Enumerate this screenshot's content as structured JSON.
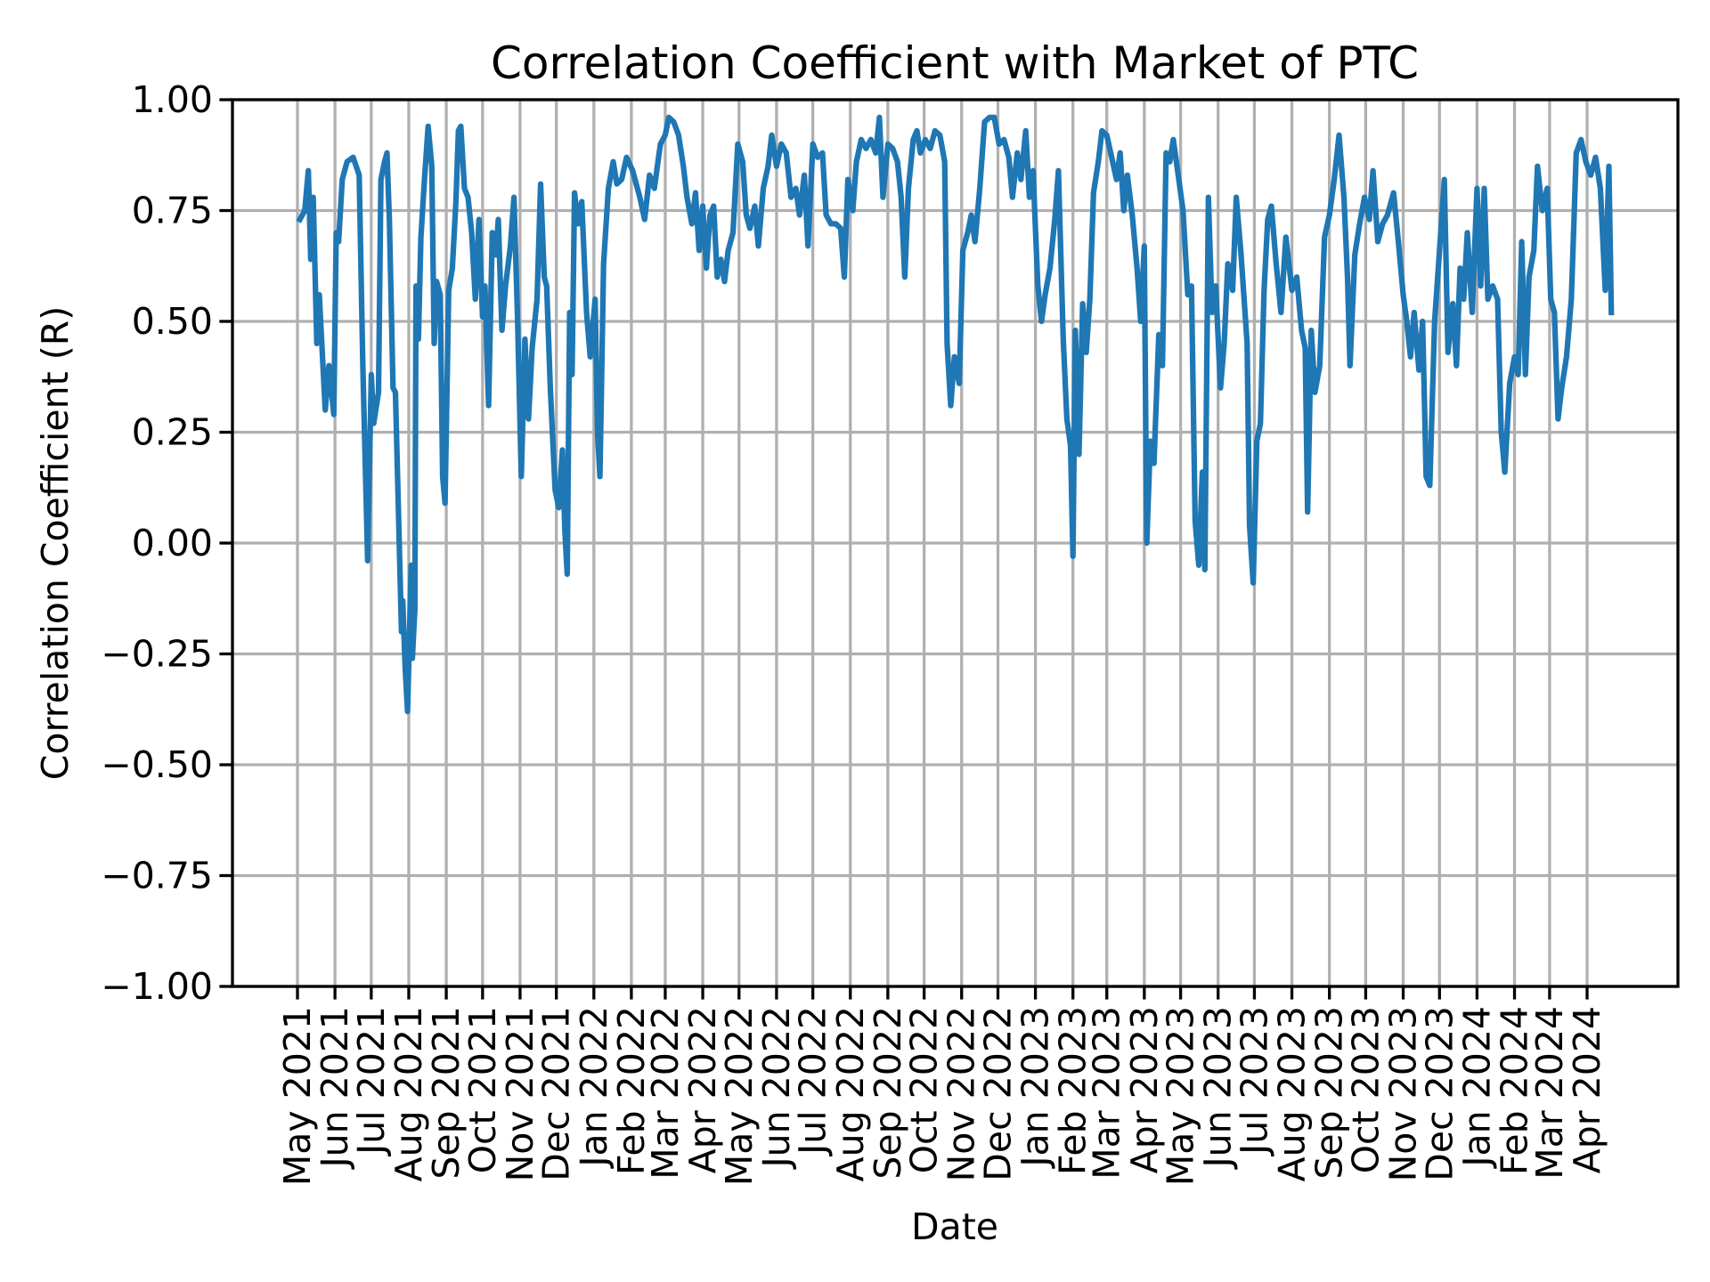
{
  "chart_data": {
    "type": "line",
    "title": "Correlation Coefficient with Market of PTC",
    "xlabel": "Date",
    "ylabel": "Correlation Coefficient (R)",
    "ylim": [
      -1.0,
      1.0
    ],
    "yticks": [
      "1.00",
      "0.75",
      "0.50",
      "0.25",
      "0.00",
      "−0.25",
      "−0.50",
      "−0.75",
      "−1.00"
    ],
    "ytick_values": [
      1.0,
      0.75,
      0.5,
      0.25,
      0.0,
      -0.25,
      -0.5,
      -0.75,
      -1.0
    ],
    "xticks": [
      "May 2021",
      "Jun 2021",
      "Jul 2021",
      "Aug 2021",
      "Sep 2021",
      "Oct 2021",
      "Nov 2021",
      "Dec 2021",
      "Jan 2022",
      "Feb 2022",
      "Mar 2022",
      "Apr 2022",
      "May 2022",
      "Jun 2022",
      "Jul 2022",
      "Aug 2022",
      "Sep 2022",
      "Oct 2022",
      "Nov 2022",
      "Dec 2022",
      "Jan 2023",
      "Feb 2023",
      "Mar 2023",
      "Apr 2023",
      "May 2023",
      "Jun 2023",
      "Jul 2023",
      "Aug 2023",
      "Sep 2023",
      "Oct 2023",
      "Nov 2023",
      "Dec 2023",
      "Jan 2024",
      "Feb 2024",
      "Mar 2024",
      "Apr 2024"
    ],
    "xtick_dates": [
      "2021-05-01",
      "2021-06-01",
      "2021-07-01",
      "2021-08-01",
      "2021-09-01",
      "2021-10-01",
      "2021-11-01",
      "2021-12-01",
      "2022-01-01",
      "2022-02-01",
      "2022-03-01",
      "2022-04-01",
      "2022-05-01",
      "2022-06-01",
      "2022-07-01",
      "2022-08-01",
      "2022-09-01",
      "2022-10-01",
      "2022-11-01",
      "2022-12-01",
      "2023-01-01",
      "2023-02-01",
      "2023-03-01",
      "2023-04-01",
      "2023-05-01",
      "2023-06-01",
      "2023-07-01",
      "2023-08-01",
      "2023-09-01",
      "2023-10-01",
      "2023-11-01",
      "2023-12-01",
      "2024-01-01",
      "2024-02-01",
      "2024-03-01",
      "2024-04-01"
    ],
    "grid": true,
    "line_color": "#1f77b4",
    "points": [
      [
        "2021-05-03",
        0.73
      ],
      [
        "2021-05-07",
        0.75
      ],
      [
        "2021-05-10",
        0.84
      ],
      [
        "2021-05-12",
        0.64
      ],
      [
        "2021-05-14",
        0.78
      ],
      [
        "2021-05-17",
        0.45
      ],
      [
        "2021-05-19",
        0.56
      ],
      [
        "2021-05-24",
        0.3
      ],
      [
        "2021-05-27",
        0.4
      ],
      [
        "2021-05-31",
        0.29
      ],
      [
        "2021-06-02",
        0.7
      ],
      [
        "2021-06-04",
        0.68
      ],
      [
        "2021-06-07",
        0.82
      ],
      [
        "2021-06-11",
        0.86
      ],
      [
        "2021-06-16",
        0.87
      ],
      [
        "2021-06-21",
        0.83
      ],
      [
        "2021-06-24",
        0.4
      ],
      [
        "2021-06-28",
        -0.04
      ],
      [
        "2021-07-01",
        0.38
      ],
      [
        "2021-07-03",
        0.27
      ],
      [
        "2021-07-07",
        0.34
      ],
      [
        "2021-07-09",
        0.82
      ],
      [
        "2021-07-12",
        0.86
      ],
      [
        "2021-07-14",
        0.88
      ],
      [
        "2021-07-16",
        0.73
      ],
      [
        "2021-07-19",
        0.35
      ],
      [
        "2021-07-21",
        0.34
      ],
      [
        "2021-07-26",
        -0.2
      ],
      [
        "2021-07-27",
        -0.13
      ],
      [
        "2021-07-29",
        -0.28
      ],
      [
        "2021-07-31",
        -0.38
      ],
      [
        "2021-08-03",
        -0.05
      ],
      [
        "2021-08-04",
        -0.26
      ],
      [
        "2021-08-06",
        -0.15
      ],
      [
        "2021-08-07",
        0.58
      ],
      [
        "2021-08-09",
        0.46
      ],
      [
        "2021-08-11",
        0.69
      ],
      [
        "2021-08-14",
        0.82
      ],
      [
        "2021-08-17",
        0.94
      ],
      [
        "2021-08-20",
        0.85
      ],
      [
        "2021-08-22",
        0.45
      ],
      [
        "2021-08-24",
        0.59
      ],
      [
        "2021-08-27",
        0.56
      ],
      [
        "2021-08-29",
        0.15
      ],
      [
        "2021-08-31",
        0.09
      ],
      [
        "2021-09-03",
        0.57
      ],
      [
        "2021-09-06",
        0.62
      ],
      [
        "2021-09-09",
        0.77
      ],
      [
        "2021-09-11",
        0.93
      ],
      [
        "2021-09-13",
        0.94
      ],
      [
        "2021-09-16",
        0.8
      ],
      [
        "2021-09-19",
        0.78
      ],
      [
        "2021-09-22",
        0.7
      ],
      [
        "2021-09-25",
        0.55
      ],
      [
        "2021-09-28",
        0.73
      ],
      [
        "2021-10-01",
        0.51
      ],
      [
        "2021-10-03",
        0.58
      ],
      [
        "2021-10-06",
        0.31
      ],
      [
        "2021-10-09",
        0.7
      ],
      [
        "2021-10-12",
        0.65
      ],
      [
        "2021-10-14",
        0.73
      ],
      [
        "2021-10-17",
        0.48
      ],
      [
        "2021-10-20",
        0.58
      ],
      [
        "2021-10-24",
        0.67
      ],
      [
        "2021-10-27",
        0.78
      ],
      [
        "2021-10-30",
        0.5
      ],
      [
        "2021-11-02",
        0.15
      ],
      [
        "2021-11-05",
        0.46
      ],
      [
        "2021-11-08",
        0.28
      ],
      [
        "2021-11-11",
        0.44
      ],
      [
        "2021-11-15",
        0.55
      ],
      [
        "2021-11-18",
        0.81
      ],
      [
        "2021-11-21",
        0.6
      ],
      [
        "2021-11-23",
        0.58
      ],
      [
        "2021-11-26",
        0.35
      ],
      [
        "2021-11-30",
        0.12
      ],
      [
        "2021-12-03",
        0.08
      ],
      [
        "2021-12-06",
        0.21
      ],
      [
        "2021-12-08",
        0.03
      ],
      [
        "2021-12-10",
        -0.07
      ],
      [
        "2021-12-12",
        0.52
      ],
      [
        "2021-12-14",
        0.38
      ],
      [
        "2021-12-16",
        0.79
      ],
      [
        "2021-12-19",
        0.72
      ],
      [
        "2021-12-22",
        0.77
      ],
      [
        "2021-12-26",
        0.52
      ],
      [
        "2021-12-29",
        0.42
      ],
      [
        "2022-01-02",
        0.55
      ],
      [
        "2022-01-04",
        0.25
      ],
      [
        "2022-01-06",
        0.15
      ],
      [
        "2022-01-09",
        0.63
      ],
      [
        "2022-01-13",
        0.8
      ],
      [
        "2022-01-17",
        0.86
      ],
      [
        "2022-01-20",
        0.81
      ],
      [
        "2022-01-24",
        0.82
      ],
      [
        "2022-01-28",
        0.87
      ],
      [
        "2022-02-02",
        0.84
      ],
      [
        "2022-02-08",
        0.78
      ],
      [
        "2022-02-12",
        0.73
      ],
      [
        "2022-02-16",
        0.83
      ],
      [
        "2022-02-20",
        0.8
      ],
      [
        "2022-02-25",
        0.9
      ],
      [
        "2022-03-01",
        0.92
      ],
      [
        "2022-03-04",
        0.96
      ],
      [
        "2022-03-08",
        0.95
      ],
      [
        "2022-03-12",
        0.92
      ],
      [
        "2022-03-16",
        0.85
      ],
      [
        "2022-03-19",
        0.78
      ],
      [
        "2022-03-23",
        0.72
      ],
      [
        "2022-03-26",
        0.79
      ],
      [
        "2022-03-29",
        0.66
      ],
      [
        "2022-04-01",
        0.76
      ],
      [
        "2022-04-04",
        0.62
      ],
      [
        "2022-04-07",
        0.74
      ],
      [
        "2022-04-10",
        0.76
      ],
      [
        "2022-04-13",
        0.6
      ],
      [
        "2022-04-16",
        0.64
      ],
      [
        "2022-04-19",
        0.59
      ],
      [
        "2022-04-22",
        0.66
      ],
      [
        "2022-04-26",
        0.7
      ],
      [
        "2022-04-30",
        0.9
      ],
      [
        "2022-05-04",
        0.86
      ],
      [
        "2022-05-07",
        0.74
      ],
      [
        "2022-05-10",
        0.71
      ],
      [
        "2022-05-14",
        0.76
      ],
      [
        "2022-05-17",
        0.67
      ],
      [
        "2022-05-21",
        0.8
      ],
      [
        "2022-05-25",
        0.85
      ],
      [
        "2022-05-28",
        0.92
      ],
      [
        "2022-06-01",
        0.85
      ],
      [
        "2022-06-05",
        0.9
      ],
      [
        "2022-06-09",
        0.88
      ],
      [
        "2022-06-13",
        0.78
      ],
      [
        "2022-06-17",
        0.8
      ],
      [
        "2022-06-20",
        0.74
      ],
      [
        "2022-06-24",
        0.83
      ],
      [
        "2022-06-27",
        0.67
      ],
      [
        "2022-07-01",
        0.9
      ],
      [
        "2022-07-05",
        0.87
      ],
      [
        "2022-07-09",
        0.88
      ],
      [
        "2022-07-12",
        0.74
      ],
      [
        "2022-07-16",
        0.72
      ],
      [
        "2022-07-20",
        0.72
      ],
      [
        "2022-07-24",
        0.71
      ],
      [
        "2022-07-27",
        0.6
      ],
      [
        "2022-07-30",
        0.82
      ],
      [
        "2022-08-03",
        0.75
      ],
      [
        "2022-08-06",
        0.86
      ],
      [
        "2022-08-10",
        0.91
      ],
      [
        "2022-08-14",
        0.89
      ],
      [
        "2022-08-18",
        0.91
      ],
      [
        "2022-08-22",
        0.88
      ],
      [
        "2022-08-25",
        0.96
      ],
      [
        "2022-08-28",
        0.78
      ],
      [
        "2022-09-01",
        0.9
      ],
      [
        "2022-09-05",
        0.89
      ],
      [
        "2022-09-09",
        0.86
      ],
      [
        "2022-09-12",
        0.78
      ],
      [
        "2022-09-15",
        0.6
      ],
      [
        "2022-09-18",
        0.8
      ],
      [
        "2022-09-22",
        0.91
      ],
      [
        "2022-09-25",
        0.93
      ],
      [
        "2022-09-28",
        0.88
      ],
      [
        "2022-10-02",
        0.91
      ],
      [
        "2022-10-06",
        0.89
      ],
      [
        "2022-10-10",
        0.93
      ],
      [
        "2022-10-14",
        0.92
      ],
      [
        "2022-10-18",
        0.86
      ],
      [
        "2022-10-20",
        0.45
      ],
      [
        "2022-10-23",
        0.31
      ],
      [
        "2022-10-26",
        0.42
      ],
      [
        "2022-10-30",
        0.36
      ],
      [
        "2022-11-02",
        0.66
      ],
      [
        "2022-11-06",
        0.7
      ],
      [
        "2022-11-09",
        0.74
      ],
      [
        "2022-11-12",
        0.68
      ],
      [
        "2022-11-16",
        0.8
      ],
      [
        "2022-11-20",
        0.95
      ],
      [
        "2022-11-24",
        0.96
      ],
      [
        "2022-11-28",
        0.96
      ],
      [
        "2022-12-02",
        0.9
      ],
      [
        "2022-12-06",
        0.91
      ],
      [
        "2022-12-10",
        0.87
      ],
      [
        "2022-12-13",
        0.78
      ],
      [
        "2022-12-17",
        0.88
      ],
      [
        "2022-12-20",
        0.82
      ],
      [
        "2022-12-24",
        0.93
      ],
      [
        "2022-12-27",
        0.78
      ],
      [
        "2022-12-30",
        0.84
      ],
      [
        "2023-01-03",
        0.58
      ],
      [
        "2023-01-06",
        0.5
      ],
      [
        "2023-01-09",
        0.56
      ],
      [
        "2023-01-13",
        0.62
      ],
      [
        "2023-01-17",
        0.73
      ],
      [
        "2023-01-20",
        0.84
      ],
      [
        "2023-01-24",
        0.46
      ],
      [
        "2023-01-27",
        0.28
      ],
      [
        "2023-01-30",
        0.22
      ],
      [
        "2023-02-01",
        -0.03
      ],
      [
        "2023-02-03",
        0.48
      ],
      [
        "2023-02-06",
        0.2
      ],
      [
        "2023-02-09",
        0.54
      ],
      [
        "2023-02-12",
        0.43
      ],
      [
        "2023-02-15",
        0.55
      ],
      [
        "2023-02-18",
        0.79
      ],
      [
        "2023-02-22",
        0.86
      ],
      [
        "2023-02-25",
        0.93
      ],
      [
        "2023-03-01",
        0.92
      ],
      [
        "2023-03-05",
        0.87
      ],
      [
        "2023-03-09",
        0.82
      ],
      [
        "2023-03-12",
        0.88
      ],
      [
        "2023-03-15",
        0.75
      ],
      [
        "2023-03-18",
        0.83
      ],
      [
        "2023-03-22",
        0.74
      ],
      [
        "2023-03-26",
        0.62
      ],
      [
        "2023-03-29",
        0.5
      ],
      [
        "2023-04-01",
        0.67
      ],
      [
        "2023-04-03",
        0.0
      ],
      [
        "2023-04-06",
        0.23
      ],
      [
        "2023-04-09",
        0.18
      ],
      [
        "2023-04-13",
        0.47
      ],
      [
        "2023-04-16",
        0.4
      ],
      [
        "2023-04-19",
        0.88
      ],
      [
        "2023-04-22",
        0.86
      ],
      [
        "2023-04-25",
        0.91
      ],
      [
        "2023-04-29",
        0.83
      ],
      [
        "2023-05-03",
        0.75
      ],
      [
        "2023-05-07",
        0.56
      ],
      [
        "2023-05-10",
        0.58
      ],
      [
        "2023-05-13",
        0.05
      ],
      [
        "2023-05-16",
        -0.05
      ],
      [
        "2023-05-19",
        0.16
      ],
      [
        "2023-05-21",
        -0.06
      ],
      [
        "2023-05-24",
        0.78
      ],
      [
        "2023-05-27",
        0.52
      ],
      [
        "2023-05-30",
        0.58
      ],
      [
        "2023-06-03",
        0.35
      ],
      [
        "2023-06-06",
        0.45
      ],
      [
        "2023-06-09",
        0.63
      ],
      [
        "2023-06-13",
        0.57
      ],
      [
        "2023-06-16",
        0.78
      ],
      [
        "2023-06-20",
        0.65
      ],
      [
        "2023-06-25",
        0.45
      ],
      [
        "2023-06-27",
        0.04
      ],
      [
        "2023-06-30",
        -0.09
      ],
      [
        "2023-07-03",
        0.23
      ],
      [
        "2023-07-06",
        0.27
      ],
      [
        "2023-07-09",
        0.57
      ],
      [
        "2023-07-12",
        0.73
      ],
      [
        "2023-07-15",
        0.76
      ],
      [
        "2023-07-19",
        0.63
      ],
      [
        "2023-07-23",
        0.52
      ],
      [
        "2023-07-27",
        0.69
      ],
      [
        "2023-08-01",
        0.57
      ],
      [
        "2023-08-05",
        0.6
      ],
      [
        "2023-08-09",
        0.48
      ],
      [
        "2023-08-12",
        0.44
      ],
      [
        "2023-08-14",
        0.07
      ],
      [
        "2023-08-17",
        0.48
      ],
      [
        "2023-08-20",
        0.34
      ],
      [
        "2023-08-24",
        0.4
      ],
      [
        "2023-08-28",
        0.69
      ],
      [
        "2023-09-01",
        0.74
      ],
      [
        "2023-09-05",
        0.82
      ],
      [
        "2023-09-09",
        0.92
      ],
      [
        "2023-09-13",
        0.78
      ],
      [
        "2023-09-16",
        0.6
      ],
      [
        "2023-09-18",
        0.4
      ],
      [
        "2023-09-22",
        0.65
      ],
      [
        "2023-09-26",
        0.72
      ],
      [
        "2023-09-30",
        0.78
      ],
      [
        "2023-10-04",
        0.73
      ],
      [
        "2023-10-07",
        0.84
      ],
      [
        "2023-10-11",
        0.68
      ],
      [
        "2023-10-15",
        0.72
      ],
      [
        "2023-10-19",
        0.74
      ],
      [
        "2023-10-24",
        0.79
      ],
      [
        "2023-10-28",
        0.68
      ],
      [
        "2023-11-01",
        0.56
      ],
      [
        "2023-11-04",
        0.5
      ],
      [
        "2023-11-07",
        0.42
      ],
      [
        "2023-11-10",
        0.52
      ],
      [
        "2023-11-14",
        0.39
      ],
      [
        "2023-11-17",
        0.5
      ],
      [
        "2023-11-20",
        0.15
      ],
      [
        "2023-11-23",
        0.13
      ],
      [
        "2023-11-27",
        0.5
      ],
      [
        "2023-12-01",
        0.66
      ],
      [
        "2023-12-05",
        0.82
      ],
      [
        "2023-12-08",
        0.43
      ],
      [
        "2023-12-12",
        0.54
      ],
      [
        "2023-12-15",
        0.4
      ],
      [
        "2023-12-18",
        0.62
      ],
      [
        "2023-12-21",
        0.55
      ],
      [
        "2023-12-24",
        0.7
      ],
      [
        "2023-12-28",
        0.52
      ],
      [
        "2024-01-01",
        0.8
      ],
      [
        "2024-01-04",
        0.58
      ],
      [
        "2024-01-07",
        0.8
      ],
      [
        "2024-01-10",
        0.55
      ],
      [
        "2024-01-14",
        0.58
      ],
      [
        "2024-01-18",
        0.55
      ],
      [
        "2024-01-21",
        0.25
      ],
      [
        "2024-01-24",
        0.16
      ],
      [
        "2024-01-28",
        0.36
      ],
      [
        "2024-02-01",
        0.42
      ],
      [
        "2024-02-04",
        0.38
      ],
      [
        "2024-02-07",
        0.68
      ],
      [
        "2024-02-10",
        0.38
      ],
      [
        "2024-02-13",
        0.6
      ],
      [
        "2024-02-17",
        0.66
      ],
      [
        "2024-02-20",
        0.85
      ],
      [
        "2024-02-24",
        0.75
      ],
      [
        "2024-02-28",
        0.8
      ],
      [
        "2024-03-02",
        0.55
      ],
      [
        "2024-03-05",
        0.52
      ],
      [
        "2024-03-08",
        0.28
      ],
      [
        "2024-03-11",
        0.35
      ],
      [
        "2024-03-15",
        0.42
      ],
      [
        "2024-03-19",
        0.55
      ],
      [
        "2024-03-23",
        0.88
      ],
      [
        "2024-03-27",
        0.91
      ],
      [
        "2024-03-31",
        0.86
      ],
      [
        "2024-04-04",
        0.83
      ],
      [
        "2024-04-08",
        0.87
      ],
      [
        "2024-04-12",
        0.8
      ],
      [
        "2024-04-16",
        0.57
      ],
      [
        "2024-04-19",
        0.85
      ],
      [
        "2024-04-21",
        0.52
      ]
    ]
  }
}
